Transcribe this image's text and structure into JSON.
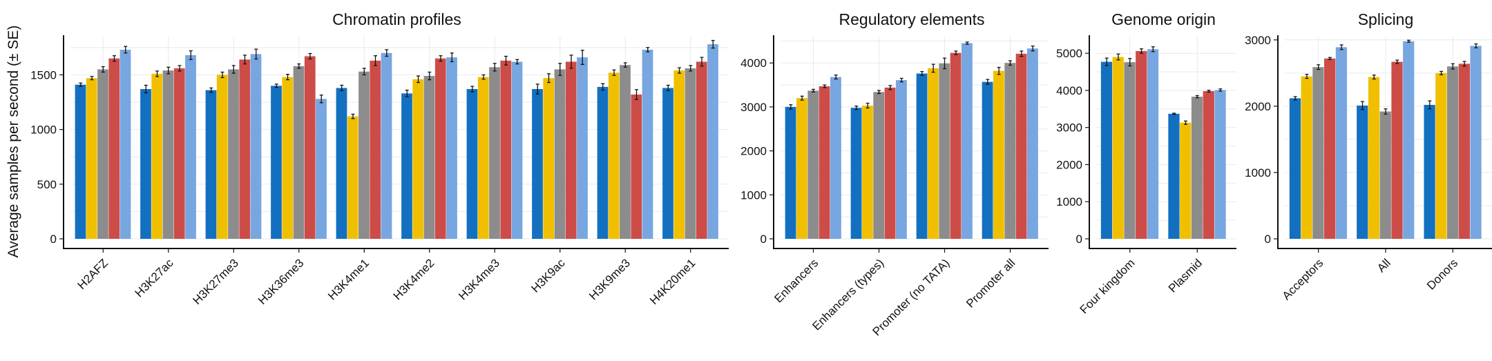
{
  "figure": {
    "ylabel": "Average samples per second (± SE)",
    "series_colors": [
      "#1370c1",
      "#f0c000",
      "#8c8c8c",
      "#cd4c48",
      "#78a6e0"
    ]
  },
  "chart_data": [
    {
      "type": "bar",
      "title": "Chromatin profiles",
      "ylabel": "Average samples per second (± SE)",
      "ylim": [
        0,
        1850
      ],
      "yticks": [
        0,
        500,
        1000,
        1500
      ],
      "grid": true,
      "categories": [
        "H2AFZ",
        "H3K27ac",
        "H3K27me3",
        "H3K36me3",
        "H3K4me1",
        "H3K4me2",
        "H3K4me3",
        "H3K9ac",
        "H3K9me3",
        "H4K20me1"
      ],
      "series": [
        {
          "color": "#1370c1",
          "values": [
            1410,
            1370,
            1360,
            1400,
            1380,
            1330,
            1370,
            1370,
            1390,
            1380
          ],
          "errors": [
            15,
            35,
            20,
            15,
            25,
            30,
            25,
            45,
            30,
            25
          ]
        },
        {
          "color": "#f0c000",
          "values": [
            1470,
            1510,
            1500,
            1480,
            1120,
            1460,
            1480,
            1470,
            1520,
            1540
          ],
          "errors": [
            15,
            25,
            25,
            25,
            20,
            30,
            20,
            40,
            25,
            25
          ]
        },
        {
          "color": "#8c8c8c",
          "values": [
            1550,
            1540,
            1550,
            1580,
            1530,
            1490,
            1570,
            1550,
            1590,
            1560
          ],
          "errors": [
            25,
            30,
            35,
            20,
            30,
            35,
            35,
            55,
            20,
            25
          ]
        },
        {
          "color": "#cd4c48",
          "values": [
            1650,
            1560,
            1640,
            1670,
            1630,
            1650,
            1630,
            1620,
            1320,
            1620
          ],
          "errors": [
            25,
            25,
            40,
            25,
            45,
            25,
            40,
            60,
            45,
            40
          ]
        },
        {
          "color": "#78a6e0",
          "values": [
            1730,
            1680,
            1690,
            1280,
            1700,
            1660,
            1620,
            1660,
            1730,
            1780
          ],
          "errors": [
            30,
            40,
            45,
            35,
            30,
            40,
            20,
            65,
            20,
            35
          ]
        }
      ]
    },
    {
      "type": "bar",
      "title": "Regulatory elements",
      "ylim": [
        0,
        4600
      ],
      "yticks": [
        0,
        1000,
        2000,
        3000,
        4000
      ],
      "grid": true,
      "categories": [
        "Enhancers",
        "Enhancers (types)",
        "Promoter (no TATA)",
        "Promoter all"
      ],
      "series": [
        {
          "color": "#1370c1",
          "values": [
            3000,
            2980,
            3760,
            3570
          ],
          "errors": [
            50,
            40,
            45,
            55
          ]
        },
        {
          "color": "#f0c000",
          "values": [
            3200,
            3030,
            3880,
            3820
          ],
          "errors": [
            45,
            55,
            90,
            80
          ]
        },
        {
          "color": "#8c8c8c",
          "values": [
            3370,
            3340,
            3990,
            4000
          ],
          "errors": [
            30,
            35,
            120,
            50
          ]
        },
        {
          "color": "#cd4c48",
          "values": [
            3470,
            3440,
            4230,
            4210
          ],
          "errors": [
            30,
            45,
            40,
            60
          ]
        },
        {
          "color": "#78a6e0",
          "values": [
            3680,
            3610,
            4450,
            4330
          ],
          "errors": [
            45,
            40,
            25,
            55
          ]
        }
      ]
    },
    {
      "type": "bar",
      "title": "Genome origin",
      "ylim": [
        0,
        5450
      ],
      "yticks": [
        0,
        1000,
        2000,
        3000,
        4000,
        5000
      ],
      "grid": true,
      "categories": [
        "Four kingdom",
        "Plasmid"
      ],
      "series": [
        {
          "color": "#1370c1",
          "values": [
            4770,
            3370
          ],
          "errors": [
            100,
            15
          ]
        },
        {
          "color": "#f0c000",
          "values": [
            4900,
            3130
          ],
          "errors": [
            80,
            45
          ]
        },
        {
          "color": "#8c8c8c",
          "values": [
            4760,
            3830
          ],
          "errors": [
            100,
            30
          ]
        },
        {
          "color": "#cd4c48",
          "values": [
            5060,
            3980
          ],
          "errors": [
            60,
            25
          ]
        },
        {
          "color": "#78a6e0",
          "values": [
            5110,
            4010
          ],
          "errors": [
            65,
            30
          ]
        }
      ]
    },
    {
      "type": "bar",
      "title": "Splicing",
      "ylim": [
        0,
        3050
      ],
      "yticks": [
        0,
        1000,
        2000,
        3000
      ],
      "grid": true,
      "categories": [
        "Acceptors",
        "All",
        "Donors"
      ],
      "series": [
        {
          "color": "#1370c1",
          "values": [
            2120,
            2010,
            2020
          ],
          "errors": [
            25,
            60,
            60
          ]
        },
        {
          "color": "#f0c000",
          "values": [
            2450,
            2440,
            2500
          ],
          "errors": [
            30,
            30,
            25
          ]
        },
        {
          "color": "#8c8c8c",
          "values": [
            2590,
            1920,
            2600
          ],
          "errors": [
            35,
            40,
            40
          ]
        },
        {
          "color": "#cd4c48",
          "values": [
            2720,
            2670,
            2640
          ],
          "errors": [
            15,
            25,
            35
          ]
        },
        {
          "color": "#78a6e0",
          "values": [
            2890,
            2980,
            2910
          ],
          "errors": [
            35,
            15,
            30
          ]
        }
      ]
    }
  ]
}
